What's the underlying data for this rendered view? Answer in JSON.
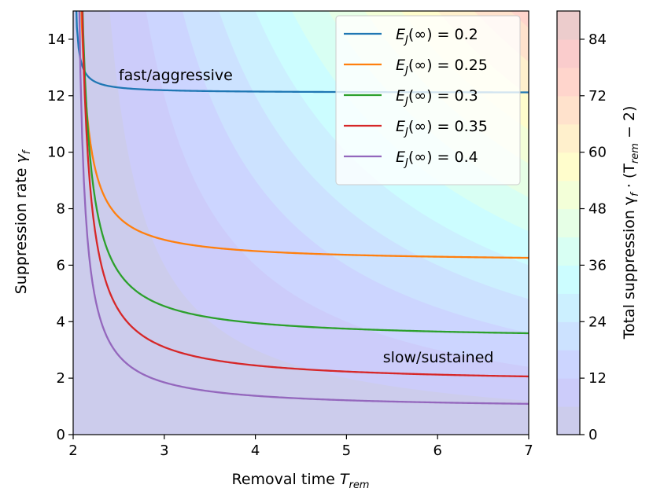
{
  "chart_data": {
    "type": "contour+line",
    "xlabel": "Removal time",
    "xlabel_sub": "rem",
    "xlabel_symbol": "T",
    "ylabel": "Suppression rate",
    "ylabel_symbol": "γ",
    "ylabel_sub": "f",
    "xlim": [
      2,
      7
    ],
    "ylim": [
      0,
      15
    ],
    "xticks": [
      2,
      3,
      4,
      5,
      6,
      7
    ],
    "yticks": [
      0,
      2,
      4,
      6,
      8,
      10,
      12,
      14
    ],
    "colorbar": {
      "label": "Total suppression γ",
      "label_sub": "f",
      "label_tail": " · (T",
      "label_tail_sub": "rem",
      "label_end": " − 2)",
      "range": [
        0,
        90
      ],
      "ticks": [
        0,
        12,
        24,
        36,
        48,
        60,
        72,
        84
      ],
      "colormap": "jet",
      "alpha": 0.2
    },
    "legend_position": "top-right",
    "series": [
      {
        "name": "E_J(∞) = 0.2",
        "ej": "0.2",
        "color": "#1f77b4",
        "asymptote": 12.1,
        "k": 0.095
      },
      {
        "name": "E_J(∞) = 0.25",
        "ej": "0.25",
        "color": "#ff7f0e",
        "asymptote": 6.1,
        "k": 0.8
      },
      {
        "name": "E_J(∞) = 0.3",
        "ej": "0.3",
        "color": "#2ca02c",
        "asymptote": 3.35,
        "k": 1.2
      },
      {
        "name": "E_J(∞) = 0.35",
        "ej": "0.35",
        "color": "#d62728",
        "asymptote": 1.8,
        "k": 1.3
      },
      {
        "name": "E_J(∞) = 0.4",
        "ej": "0.4",
        "color": "#9467bd",
        "asymptote": 0.9,
        "k": 0.95
      }
    ],
    "annotations": [
      {
        "text": "fast/aggressive",
        "x": 2.5,
        "y": 12.75
      },
      {
        "text": "slow/sustained",
        "x": 5.4,
        "y": 2.75
      }
    ]
  }
}
